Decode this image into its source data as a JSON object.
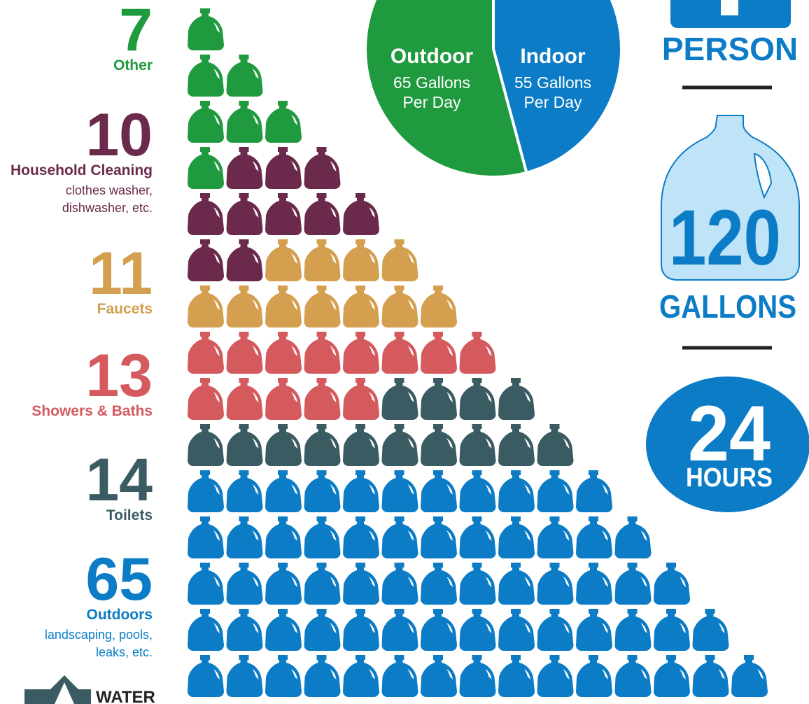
{
  "chart_data": [
    {
      "type": "pictogram",
      "categories": [
        "Other",
        "Household Cleaning",
        "Faucets",
        "Showers & Baths",
        "Toilets",
        "Outdoors"
      ],
      "values": [
        7,
        10,
        11,
        13,
        14,
        65
      ],
      "colors": [
        "#1f9a3e",
        "#6b2a4b",
        "#d4a04f",
        "#d45a5e",
        "#3b5b63",
        "#0b7cc5"
      ],
      "descriptions": [
        null,
        [
          "clothes washer,",
          "dishwasher, etc."
        ],
        null,
        null,
        null,
        [
          "landscaping, pools,",
          "leaks, etc."
        ]
      ]
    },
    {
      "type": "pie",
      "categories": [
        "Outdoor",
        "Indoor"
      ],
      "values": [
        65,
        55
      ],
      "value_labels": [
        "65 Gallons",
        "55 Gallons"
      ],
      "unit_labels": [
        "Per Day",
        "Per Day"
      ],
      "colors": [
        "#1f9a3e",
        "#0b7cc5"
      ]
    }
  ],
  "summary": {
    "unit": "PERSON",
    "total": 120,
    "total_unit": "GALLONS",
    "period": 24,
    "period_unit": "HOURS"
  },
  "logo_text": "WATER"
}
